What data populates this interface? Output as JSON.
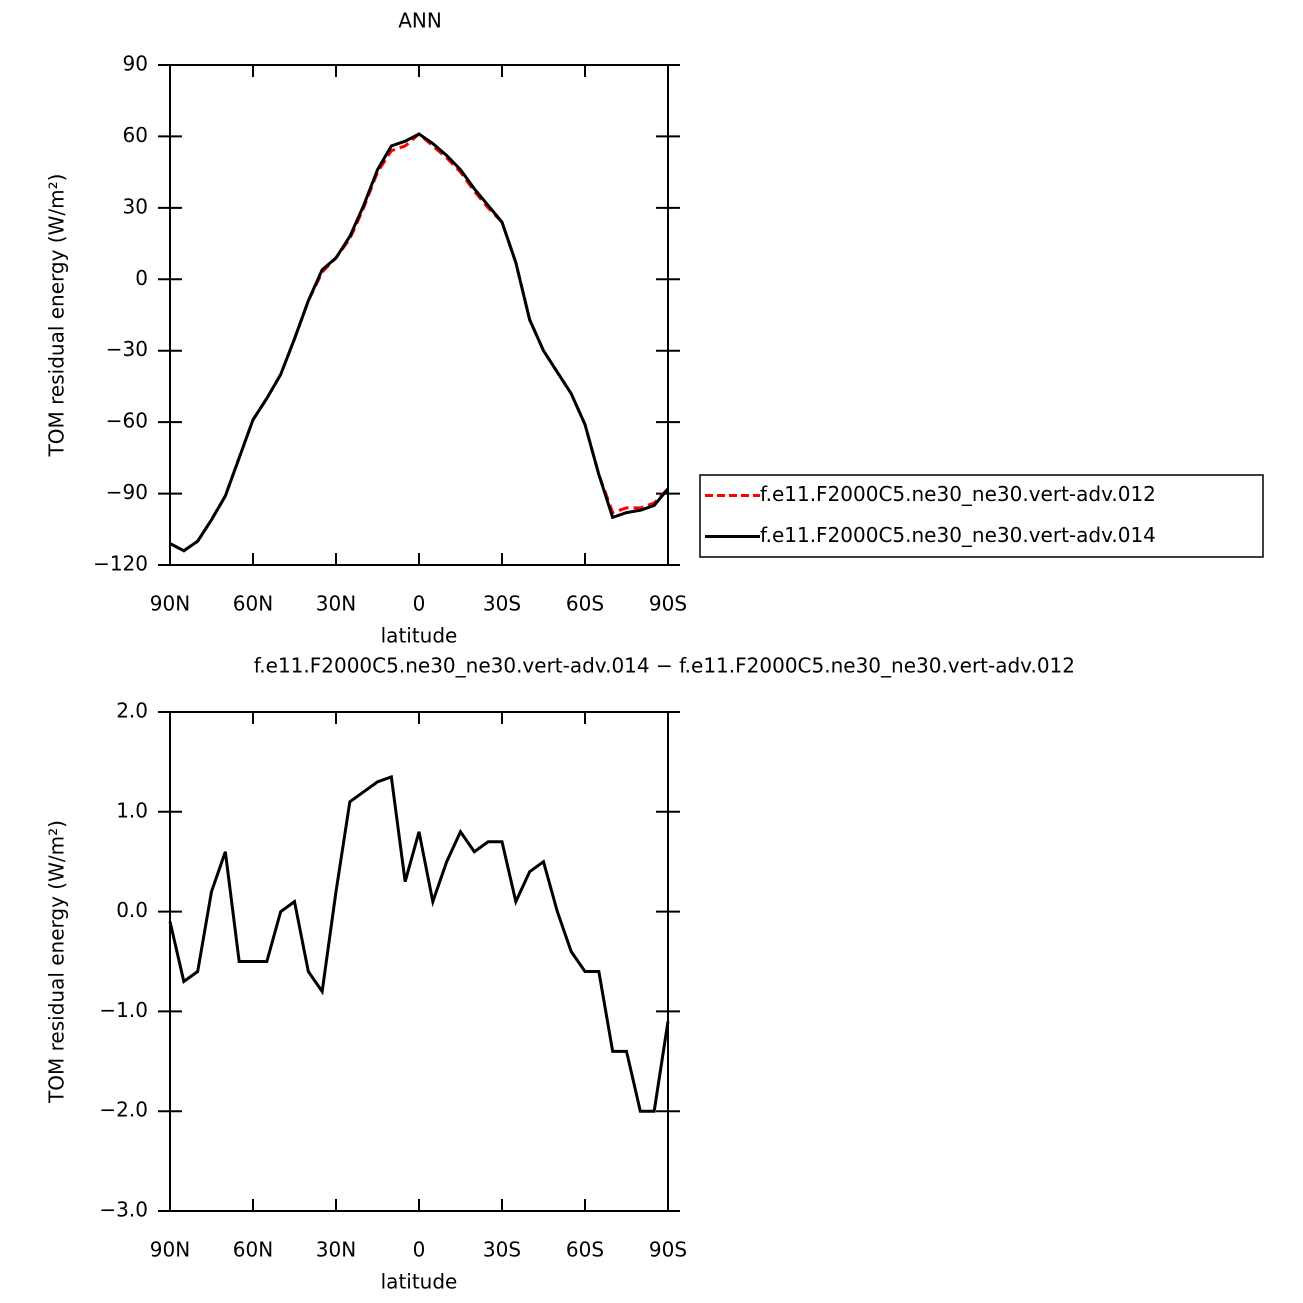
{
  "chart_data": [
    {
      "type": "line",
      "title": "ANN",
      "xlabel": "latitude",
      "ylabel": "TOM residual energy (W/m²)",
      "x": [
        90,
        85,
        80,
        75,
        70,
        65,
        60,
        55,
        50,
        45,
        40,
        35,
        30,
        25,
        20,
        15,
        10,
        5,
        0,
        -5,
        -10,
        -15,
        -20,
        -25,
        -30,
        -35,
        -40,
        -45,
        -50,
        -55,
        -60,
        -65,
        -70,
        -75,
        -80,
        -85,
        -90
      ],
      "series": [
        {
          "name": "f.e11.F2000C5.ne30_ne30.vert-adv.012",
          "color": "#ff0000",
          "dash": true,
          "values": [
            -111,
            -114,
            -110,
            -101,
            -91,
            -75,
            -59,
            -50,
            -40,
            -25,
            -9,
            3,
            9,
            17,
            30,
            45,
            54,
            56,
            61,
            56,
            51,
            45,
            37,
            30,
            24,
            7,
            -17,
            -30,
            -39,
            -48,
            -61,
            -82,
            -98,
            -96,
            -96,
            -94,
            -88
          ]
        },
        {
          "name": "f.e11.F2000C5.ne30_ne30.vert-adv.014",
          "color": "#000000",
          "dash": false,
          "values": [
            -111,
            -114,
            -110,
            -101,
            -91,
            -75,
            -59,
            -50,
            -40,
            -25,
            -9,
            4,
            9,
            18,
            31,
            46,
            56,
            58,
            61,
            57,
            52,
            46,
            38,
            31,
            24,
            7,
            -17,
            -30,
            -39,
            -48,
            -61,
            -82,
            -100,
            -98,
            -97,
            -95,
            -88
          ]
        }
      ],
      "xlim": [
        90,
        -90
      ],
      "xticks": [
        {
          "value": 90,
          "label": "90N"
        },
        {
          "value": 60,
          "label": "60N"
        },
        {
          "value": 30,
          "label": "30N"
        },
        0,
        {
          "value": -30,
          "label": "30S"
        },
        {
          "value": -60,
          "label": "60S"
        },
        {
          "value": -90,
          "label": "90S"
        }
      ],
      "ylim": [
        -120,
        90
      ],
      "yticks": [
        {
          "value": -120,
          "label": "−120"
        },
        {
          "value": -90,
          "label": "−90"
        },
        {
          "value": -60,
          "label": "−60"
        },
        {
          "value": -30,
          "label": "−30"
        },
        0,
        30,
        60,
        90
      ]
    },
    {
      "type": "line",
      "title": "f.e11.F2000C5.ne30_ne30.vert-adv.014 − f.e11.F2000C5.ne30_ne30.vert-adv.012",
      "xlabel": "latitude",
      "ylabel": "TOM residual energy (W/m²)",
      "x": [
        90,
        85,
        80,
        75,
        70,
        65,
        60,
        55,
        50,
        45,
        40,
        35,
        30,
        25,
        20,
        15,
        10,
        5,
        0,
        -5,
        -10,
        -15,
        -20,
        -25,
        -30,
        -35,
        -40,
        -45,
        -50,
        -55,
        -60,
        -65,
        -70,
        -75,
        -80,
        -85,
        -90
      ],
      "series": [
        {
          "color": "#000000",
          "dash": false,
          "values": [
            -0.1,
            -0.7,
            -0.6,
            0.2,
            0.6,
            -0.5,
            -0.5,
            -0.5,
            0.0,
            0.1,
            -0.6,
            -0.8,
            0.2,
            1.1,
            1.2,
            1.3,
            1.35,
            0.3,
            0.8,
            0.1,
            0.5,
            0.8,
            0.6,
            0.7,
            0.7,
            0.1,
            0.4,
            0.5,
            0.0,
            -0.4,
            -0.6,
            -0.6,
            -1.4,
            -1.4,
            -2.0,
            -2.0,
            -1.1
          ]
        }
      ],
      "xlim": [
        90,
        -90
      ],
      "xticks": [
        {
          "value": 90,
          "label": "90N"
        },
        {
          "value": 60,
          "label": "60N"
        },
        {
          "value": 30,
          "label": "30N"
        },
        0,
        {
          "value": -30,
          "label": "30S"
        },
        {
          "value": -60,
          "label": "60S"
        },
        {
          "value": -90,
          "label": "90S"
        }
      ],
      "ylim": [
        -3,
        2
      ],
      "yticks": [
        {
          "value": -3,
          "label": "−3.0"
        },
        {
          "value": -2,
          "label": "−2.0"
        },
        {
          "value": -1,
          "label": "−1.0"
        },
        {
          "value": 0,
          "label": "0.0"
        },
        {
          "value": 1,
          "label": "1.0"
        },
        {
          "value": 2,
          "label": "2.0"
        }
      ]
    }
  ]
}
